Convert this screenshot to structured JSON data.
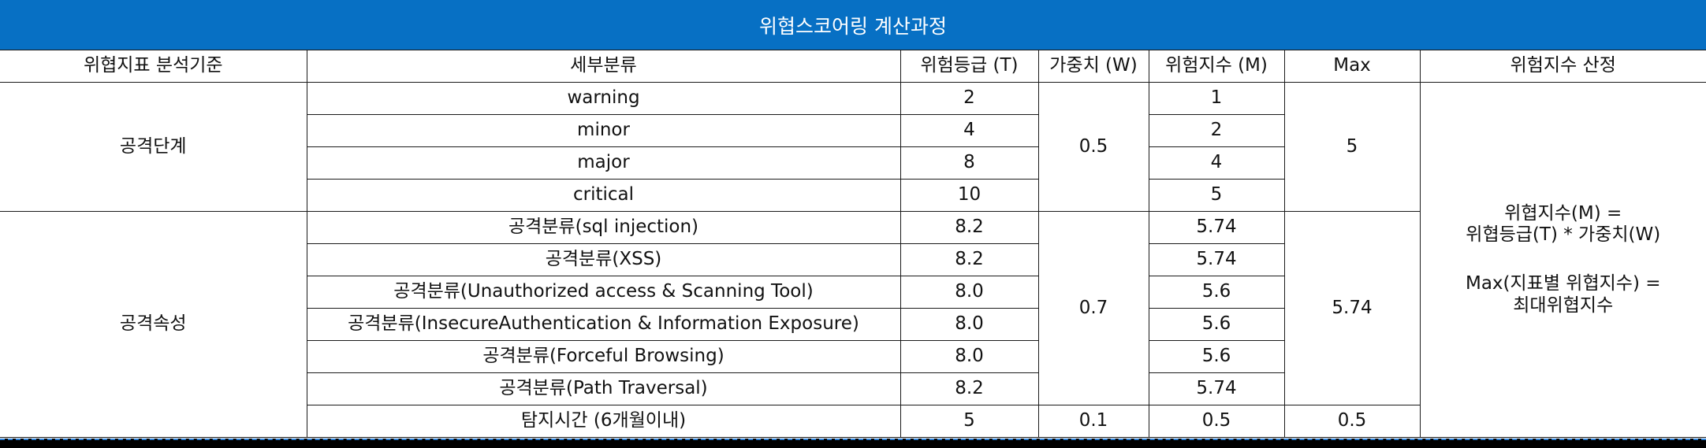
{
  "title": "위협스코어링 계산과정",
  "headers": [
    "위협지표 분석기준",
    "세부분류",
    "위험등급 (T)",
    "가중치 (W)",
    "위험지수 (M)",
    "Max",
    "위험지수 산정"
  ],
  "groups": [
    {
      "category": "공격단계",
      "weight": "0.5",
      "max": "5",
      "rows": [
        {
          "sub": "warning",
          "grade": "2",
          "index": "1"
        },
        {
          "sub": "minor",
          "grade": "4",
          "index": "2"
        },
        {
          "sub": "major",
          "grade": "8",
          "index": "4"
        },
        {
          "sub": "critical",
          "grade": "10",
          "index": "5"
        }
      ]
    },
    {
      "category": "공격속성",
      "weight": "0.7",
      "max": "5.74",
      "rows": [
        {
          "sub": "공격분류(sql injection)",
          "grade": "8.2",
          "index": "5.74"
        },
        {
          "sub": "공격분류(XSS)",
          "grade": "8.2",
          "index": "5.74"
        },
        {
          "sub": "공격분류(Unauthorized access & Scanning Tool)",
          "grade": "8.0",
          "index": "5.6"
        },
        {
          "sub": "공격분류(InsecureAuthentication & Information Exposure)",
          "grade": "8.0",
          "index": "5.6"
        },
        {
          "sub": "공격분류(Forceful Browsing)",
          "grade": "8.0",
          "index": "5.6"
        },
        {
          "sub": "공격분류(Path Traversal)",
          "grade": "8.2",
          "index": "5.74"
        }
      ],
      "extra": {
        "sub": "탐지시간 (6개월이내)",
        "grade": "5",
        "weight": "0.1",
        "index": "0.5",
        "max": "0.5"
      }
    }
  ],
  "formula": {
    "line1": "위협지수(M) =",
    "line2": "위협등급(T) * 가중치(W)",
    "line3": "Max(지표별 위협지수) =",
    "line4": "최대위협지수"
  }
}
